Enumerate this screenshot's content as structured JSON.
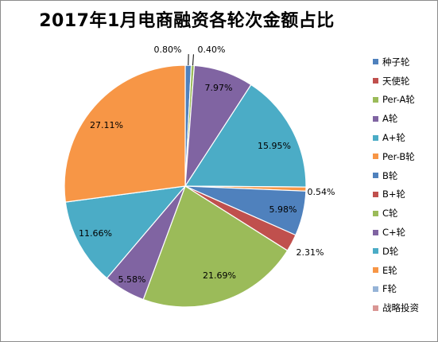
{
  "chart_data": {
    "type": "pie",
    "title": "2017年1月电商融资各轮次金额占比",
    "slices": [
      {
        "label": "种子轮",
        "value": 0.8,
        "value_label": "0.80%",
        "color": "#4f81bd"
      },
      {
        "label": "天使轮",
        "value": 0.0,
        "value_label": "",
        "color": "#c0504d"
      },
      {
        "label": "Per-A轮",
        "value": 0.4,
        "value_label": "0.40%",
        "color": "#9bbb59"
      },
      {
        "label": "A轮",
        "value": 7.97,
        "value_label": "7.97%",
        "color": "#8064a2"
      },
      {
        "label": "A+轮",
        "value": 15.95,
        "value_label": "15.95%",
        "color": "#4bacc6"
      },
      {
        "label": "Per-B轮",
        "value": 0.54,
        "value_label": "0.54%",
        "color": "#f79646"
      },
      {
        "label": "B轮",
        "value": 5.98,
        "value_label": "5.98%",
        "color": "#4f81bd"
      },
      {
        "label": "B+轮",
        "value": 2.31,
        "value_label": "2.31%",
        "color": "#c0504d"
      },
      {
        "label": "C轮",
        "value": 21.69,
        "value_label": "21.69%",
        "color": "#9bbb59"
      },
      {
        "label": "C+轮",
        "value": 5.58,
        "value_label": "5.58%",
        "color": "#8064a2"
      },
      {
        "label": "D轮",
        "value": 11.66,
        "value_label": "11.66%",
        "color": "#4bacc6"
      },
      {
        "label": "E轮",
        "value": 27.11,
        "value_label": "27.11%",
        "color": "#f79646"
      },
      {
        "label": "F轮",
        "value": 0.0,
        "value_label": "",
        "color": "#95b3d7"
      },
      {
        "label": "战略投资",
        "value": 0.0,
        "value_label": "",
        "color": "#d99694"
      }
    ],
    "legend_position": "right"
  }
}
